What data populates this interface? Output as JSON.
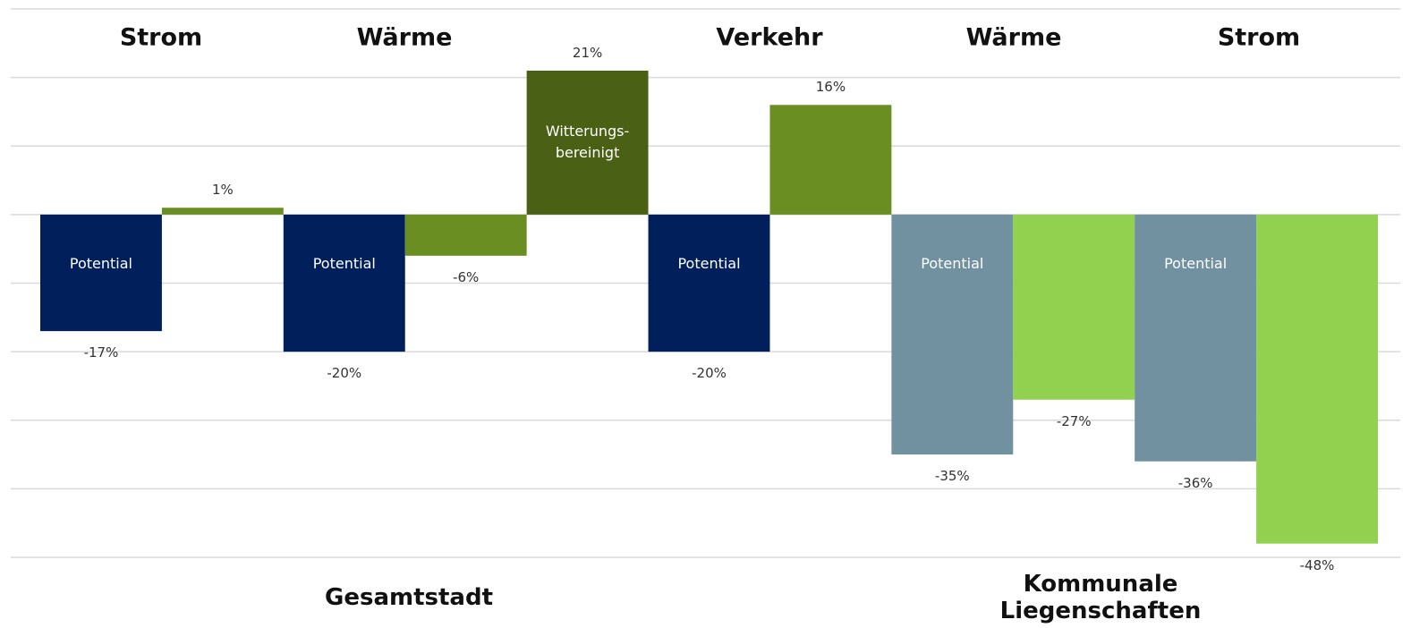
{
  "chart_data": {
    "type": "bar",
    "headers": [
      "Strom",
      "Wärme",
      "Verkehr",
      "Wärme",
      "Strom"
    ],
    "groups": [
      "Gesamtstadt",
      "Kommunale Liegenschaften"
    ],
    "categories": [
      "Potential",
      null,
      "Potential",
      null,
      "Witterungs-\nbereinigt",
      "Potential",
      null,
      "Potential",
      null,
      "Potential",
      null
    ],
    "values": [
      -17,
      1,
      -20,
      -6,
      21,
      -20,
      16,
      -35,
      -27,
      -36,
      -48
    ],
    "value_labels": [
      "-17%",
      "1%",
      "-20%",
      "-6%",
      "21%",
      "-20%",
      "16%",
      "-35%",
      "-27%",
      "-36%",
      "-48%"
    ],
    "colors": [
      "#001f5b",
      "#6b8e23",
      "#001f5b",
      "#6b8e23",
      "#4a6015",
      "#001f5b",
      "#6b8e23",
      "#7191a1",
      "#92d050",
      "#7191a1",
      "#92d050"
    ],
    "ylim": [
      -50,
      30
    ],
    "yticks": [
      -50,
      -40,
      -30,
      -20,
      -10,
      0,
      10,
      20,
      30
    ],
    "grid": true
  }
}
